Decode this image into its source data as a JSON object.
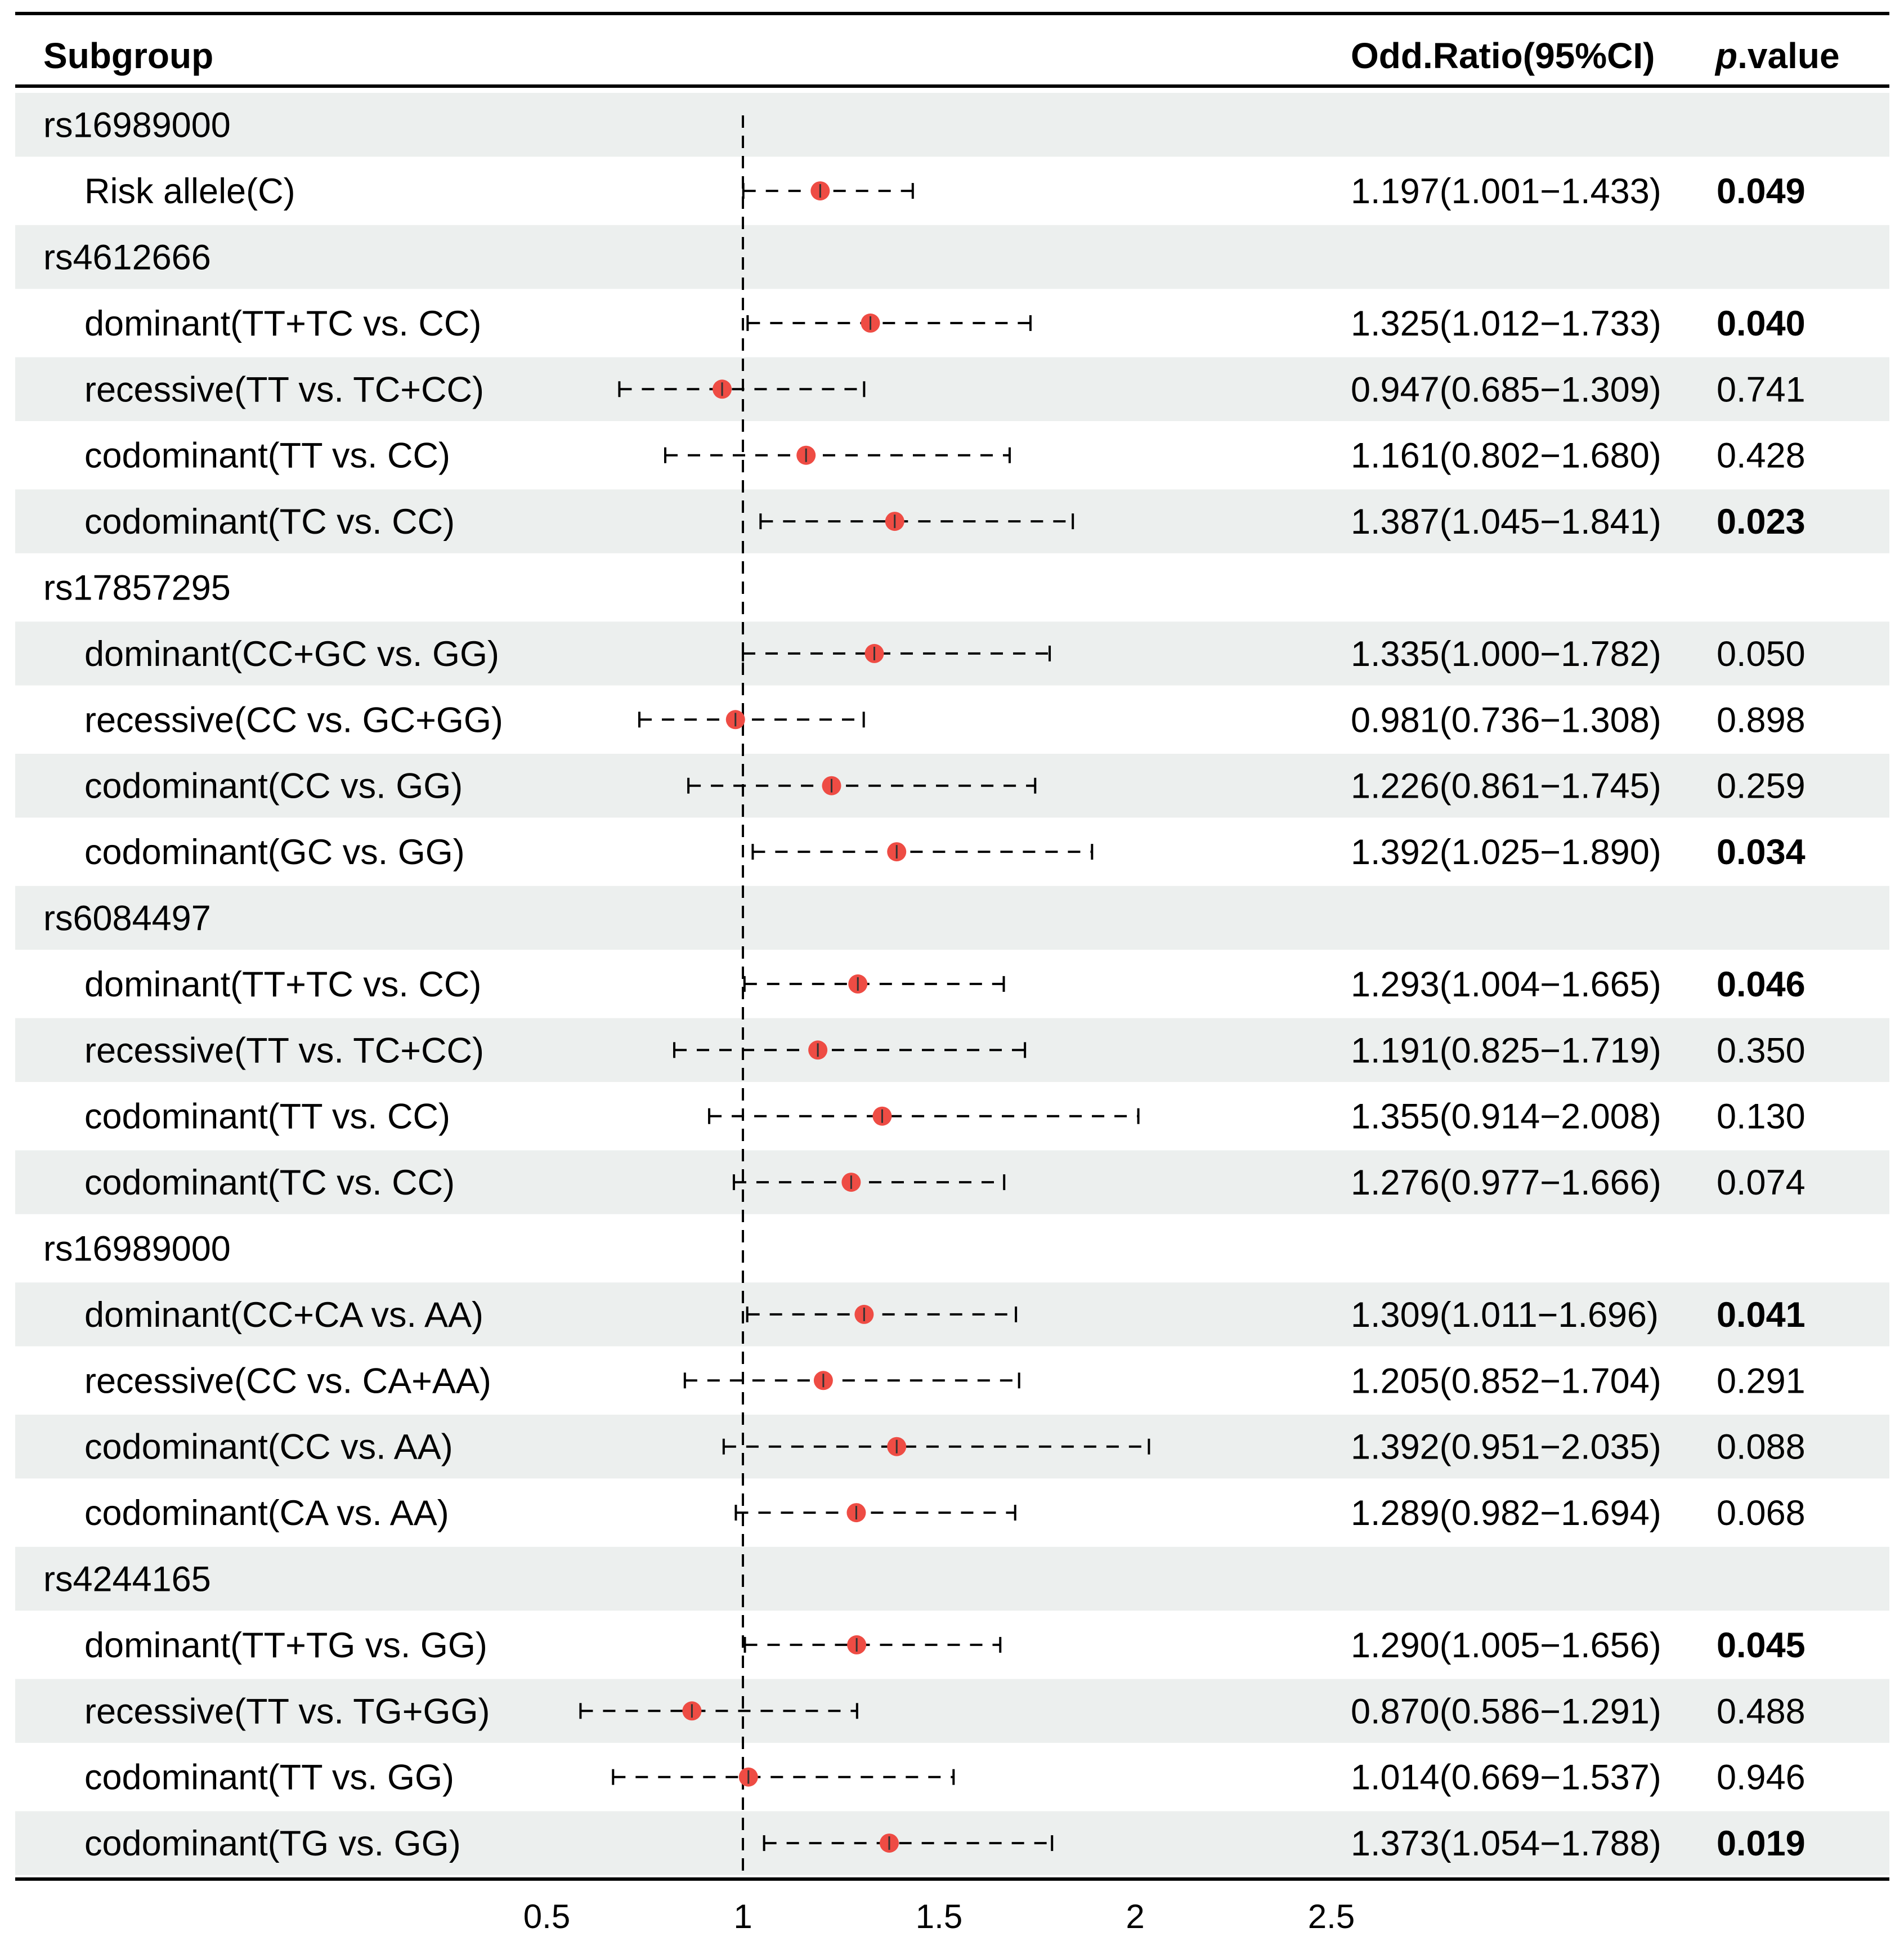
{
  "chart_data": {
    "type": "forest",
    "columns": {
      "subgroup": "Subgroup",
      "or": "Odd.Ratio(95%CI)",
      "p_italic": "p",
      "p_rest": ".value"
    },
    "reference_line": 1,
    "xlim": [
      0.5,
      2.5
    ],
    "xticks": [
      "0.5",
      "1",
      "1.5",
      "2",
      "2.5"
    ],
    "colors": {
      "band": "#ecefee",
      "point": "#ee4c44",
      "line": "#000000"
    },
    "rows": [
      {
        "label": "rs16989000",
        "header": true
      },
      {
        "label": "Risk allele(C)",
        "or": 1.197,
        "lo": 1.001,
        "hi": 1.433,
        "or_text": "1.197(1.001−1.433)",
        "p": "0.049",
        "sig": true
      },
      {
        "label": "rs4612666",
        "header": true
      },
      {
        "label": "dominant(TT+TC vs. CC)",
        "or": 1.325,
        "lo": 1.012,
        "hi": 1.733,
        "or_text": "1.325(1.012−1.733)",
        "p": "0.040",
        "sig": true
      },
      {
        "label": "recessive(TT vs. TC+CC)",
        "or": 0.947,
        "lo": 0.685,
        "hi": 1.309,
        "or_text": "0.947(0.685−1.309)",
        "p": "0.741",
        "sig": false
      },
      {
        "label": "codominant(TT vs. CC)",
        "or": 1.161,
        "lo": 0.802,
        "hi": 1.68,
        "or_text": "1.161(0.802−1.680)",
        "p": "0.428",
        "sig": false
      },
      {
        "label": "codominant(TC vs. CC)",
        "or": 1.387,
        "lo": 1.045,
        "hi": 1.841,
        "or_text": "1.387(1.045−1.841)",
        "p": "0.023",
        "sig": true
      },
      {
        "label": "rs17857295",
        "header": true
      },
      {
        "label": "dominant(CC+GC vs. GG)",
        "or": 1.335,
        "lo": 1.0,
        "hi": 1.782,
        "or_text": "1.335(1.000−1.782)",
        "p": "0.050",
        "sig": false
      },
      {
        "label": "recessive(CC vs. GC+GG)",
        "or": 0.981,
        "lo": 0.736,
        "hi": 1.308,
        "or_text": "0.981(0.736−1.308)",
        "p": "0.898",
        "sig": false
      },
      {
        "label": "codominant(CC vs. GG)",
        "or": 1.226,
        "lo": 0.861,
        "hi": 1.745,
        "or_text": "1.226(0.861−1.745)",
        "p": "0.259",
        "sig": false
      },
      {
        "label": "codominant(GC vs. GG)",
        "or": 1.392,
        "lo": 1.025,
        "hi": 1.89,
        "or_text": "1.392(1.025−1.890)",
        "p": "0.034",
        "sig": true
      },
      {
        "label": "rs6084497",
        "header": true
      },
      {
        "label": "dominant(TT+TC vs. CC)",
        "or": 1.293,
        "lo": 1.004,
        "hi": 1.665,
        "or_text": "1.293(1.004−1.665)",
        "p": "0.046",
        "sig": true
      },
      {
        "label": "recessive(TT vs. TC+CC)",
        "or": 1.191,
        "lo": 0.825,
        "hi": 1.719,
        "or_text": "1.191(0.825−1.719)",
        "p": "0.350",
        "sig": false
      },
      {
        "label": "codominant(TT vs. CC)",
        "or": 1.355,
        "lo": 0.914,
        "hi": 2.008,
        "or_text": "1.355(0.914−2.008)",
        "p": "0.130",
        "sig": false
      },
      {
        "label": "codominant(TC vs. CC)",
        "or": 1.276,
        "lo": 0.977,
        "hi": 1.666,
        "or_text": "1.276(0.977−1.666)",
        "p": "0.074",
        "sig": false
      },
      {
        "label": "rs16989000",
        "header": true
      },
      {
        "label": "dominant(CC+CA vs. AA)",
        "or": 1.309,
        "lo": 1.011,
        "hi": 1.696,
        "or_text": "1.309(1.011−1.696)",
        "p": "0.041",
        "sig": true
      },
      {
        "label": "recessive(CC vs. CA+AA)",
        "or": 1.205,
        "lo": 0.852,
        "hi": 1.704,
        "or_text": "1.205(0.852−1.704)",
        "p": "0.291",
        "sig": false
      },
      {
        "label": "codominant(CC vs. AA)",
        "or": 1.392,
        "lo": 0.951,
        "hi": 2.035,
        "or_text": "1.392(0.951−2.035)",
        "p": "0.088",
        "sig": false
      },
      {
        "label": "codominant(CA vs. AA)",
        "or": 1.289,
        "lo": 0.982,
        "hi": 1.694,
        "or_text": "1.289(0.982−1.694)",
        "p": "0.068",
        "sig": false
      },
      {
        "label": "rs4244165",
        "header": true
      },
      {
        "label": "dominant(TT+TG vs. GG)",
        "or": 1.29,
        "lo": 1.005,
        "hi": 1.656,
        "or_text": "1.290(1.005−1.656)",
        "p": "0.045",
        "sig": true
      },
      {
        "label": "recessive(TT vs. TG+GG)",
        "or": 0.87,
        "lo": 0.586,
        "hi": 1.291,
        "or_text": "0.870(0.586−1.291)",
        "p": "0.488",
        "sig": false
      },
      {
        "label": "codominant(TT vs. GG)",
        "or": 1.014,
        "lo": 0.669,
        "hi": 1.537,
        "or_text": "1.014(0.669−1.537)",
        "p": "0.946",
        "sig": false
      },
      {
        "label": "codominant(TG vs. GG)",
        "or": 1.373,
        "lo": 1.054,
        "hi": 1.788,
        "or_text": "1.373(1.054−1.788)",
        "p": "0.019",
        "sig": true
      }
    ]
  }
}
